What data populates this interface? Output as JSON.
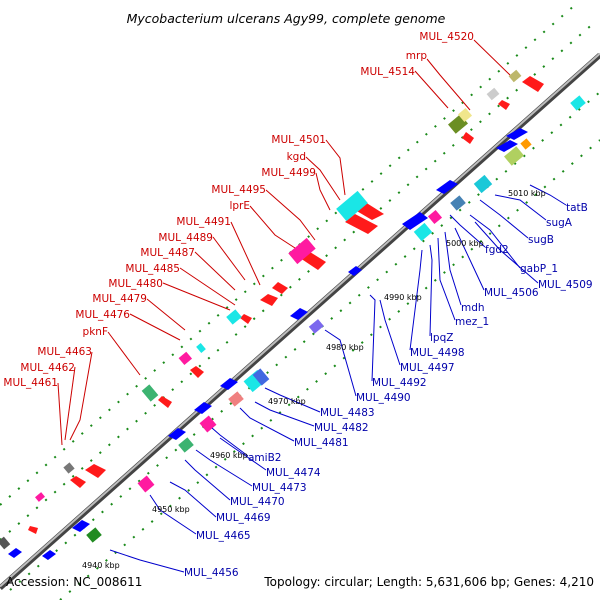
{
  "title": "Mycobacterium ulcerans Agy99, complete genome",
  "footer": {
    "accession": "Accession: NC_008611",
    "topology": "Topology: circular; Length: 5,631,606 bp; Genes: 4,210"
  },
  "kbp_ticks": [
    "4940 kbp",
    "4950 kbp",
    "4960 kbp",
    "4970 kbp",
    "4980 kbp",
    "4990 kbp",
    "5000 kbp",
    "5010 kbp"
  ],
  "forward_labels": [
    "MUL_4520",
    "mrp",
    "MUL_4514",
    "MUL_4501",
    "kgd",
    "MUL_4499",
    "MUL_4495",
    "lprE",
    "MUL_4491",
    "MUL_4489",
    "MUL_4487",
    "MUL_4485",
    "MUL_4480",
    "MUL_4479",
    "MUL_4476",
    "pknF",
    "MUL_4463",
    "MUL_4462",
    "MUL_4461"
  ],
  "reverse_labels": [
    "tatB",
    "sugA",
    "sugB",
    "gabP_1",
    "MUL_4509",
    "fgd2",
    "MUL_4506",
    "mdh",
    "mez_1",
    "lpqZ",
    "MUL_4498",
    "MUL_4497",
    "MUL_4492",
    "MUL_4490",
    "MUL_4483",
    "MUL_4482",
    "MUL_4481",
    "amiB2",
    "MUL_4474",
    "MUL_4473",
    "MUL_4470",
    "MUL_4469",
    "MUL_4465",
    "MUL_4456"
  ],
  "colors": {
    "backbone": "#8a8a8a",
    "forward_label": "#cc0000",
    "reverse_label": "#0000aa",
    "forward_arrow": "#ff0000",
    "reverse_arrow": "#0000ff",
    "tick": "#1a8a1a"
  }
}
